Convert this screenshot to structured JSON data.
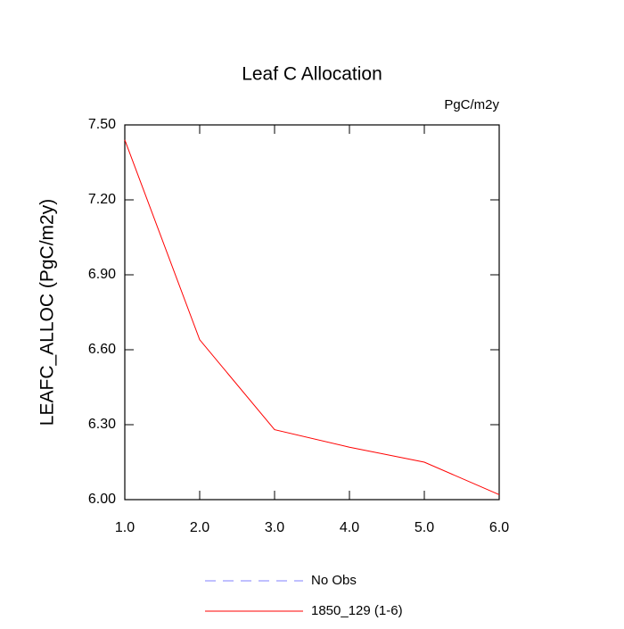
{
  "chart_data": {
    "type": "line",
    "title": "Leaf C Allocation",
    "units": "PgC/m2y",
    "ylabel": "LEAFC_ALLOC  (PgC/m2y)",
    "x": [
      1,
      2,
      3,
      4,
      5,
      6
    ],
    "series": [
      {
        "name": "No Obs",
        "color": "#8080ff",
        "dashed": true,
        "values": [
          null,
          null,
          null,
          null,
          null,
          null
        ]
      },
      {
        "name": "1850_129 (1-6)",
        "color": "#ff0000",
        "dashed": false,
        "values": [
          7.44,
          6.64,
          6.28,
          6.21,
          6.15,
          6.02
        ]
      }
    ],
    "xlim": [
      1,
      6
    ],
    "xticks": [
      {
        "value": 1,
        "label": "1.0"
      },
      {
        "value": 2,
        "label": "2.0"
      },
      {
        "value": 3,
        "label": "3.0"
      },
      {
        "value": 4,
        "label": "4.0"
      },
      {
        "value": 5,
        "label": "5.0"
      },
      {
        "value": 6,
        "label": "6.0"
      }
    ],
    "ylim": [
      6,
      7.5
    ],
    "yticks": [
      {
        "value": 6,
        "label": "6.00"
      },
      {
        "value": 6.3,
        "label": "6.30"
      },
      {
        "value": 6.6,
        "label": "6.60"
      },
      {
        "value": 6.9,
        "label": "6.90"
      },
      {
        "value": 7.2,
        "label": "7.20"
      },
      {
        "value": 7.5,
        "label": "7.50"
      }
    ]
  }
}
